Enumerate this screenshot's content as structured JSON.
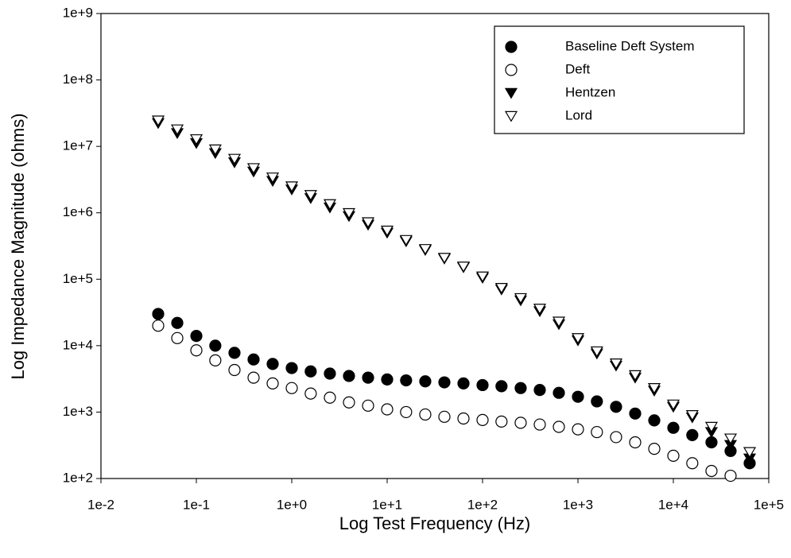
{
  "chart_data": {
    "type": "scatter",
    "x_label": "Log Test Frequency (Hz)",
    "y_label": "Log Impedance Magnitude (ohms)",
    "log_x": true,
    "log_y": true,
    "grid": false,
    "legend_position": "top-right",
    "xlim": [
      0.01,
      100000
    ],
    "ylim": [
      100,
      1000000000
    ],
    "xticks": [
      {
        "value": 0.01,
        "label": "1e-2"
      },
      {
        "value": 0.1,
        "label": "1e-1"
      },
      {
        "value": 1,
        "label": "1e+0"
      },
      {
        "value": 10,
        "label": "1e+1"
      },
      {
        "value": 100,
        "label": "1e+2"
      },
      {
        "value": 1000,
        "label": "1e+3"
      },
      {
        "value": 10000,
        "label": "1e+4"
      },
      {
        "value": 100000,
        "label": "1e+5"
      }
    ],
    "yticks": [
      {
        "value": 100,
        "label": "1e+2"
      },
      {
        "value": 1000,
        "label": "1e+3"
      },
      {
        "value": 10000,
        "label": "1e+4"
      },
      {
        "value": 100000,
        "label": "1e+5"
      },
      {
        "value": 1000000,
        "label": "1e+6"
      },
      {
        "value": 10000000,
        "label": "1e+7"
      },
      {
        "value": 100000000,
        "label": "1e+8"
      },
      {
        "value": 1000000000,
        "label": "1e+9"
      }
    ],
    "x": [
      0.0398,
      0.0631,
      0.1,
      0.158,
      0.251,
      0.398,
      0.631,
      1,
      1.58,
      2.51,
      3.98,
      6.31,
      10,
      15.8,
      25.1,
      39.8,
      63.1,
      100,
      158,
      251,
      398,
      631,
      1000,
      1580,
      2510,
      3980,
      6310,
      10000,
      15800,
      25100,
      39800,
      63100
    ],
    "series": [
      {
        "name": "Baseline Deft System",
        "color": "#000000",
        "marker": "circle",
        "filled": true,
        "values": [
          30000,
          22000,
          14000,
          10000,
          7800,
          6200,
          5300,
          4600,
          4100,
          3800,
          3500,
          3300,
          3100,
          3000,
          2900,
          2800,
          2700,
          2550,
          2450,
          2300,
          2150,
          1950,
          1700,
          1450,
          1200,
          950,
          750,
          580,
          450,
          350,
          260,
          170
        ]
      },
      {
        "name": "Deft",
        "color": "#000000",
        "marker": "circle",
        "filled": false,
        "values": [
          20000,
          13000,
          8500,
          6000,
          4300,
          3300,
          2700,
          2300,
          1900,
          1650,
          1400,
          1250,
          1100,
          1000,
          920,
          850,
          800,
          760,
          720,
          690,
          650,
          600,
          550,
          500,
          420,
          350,
          280,
          220,
          170,
          130,
          110,
          null
        ]
      },
      {
        "name": "Hentzen",
        "color": "#000000",
        "marker": "triangle-down",
        "filled": true,
        "values": [
          22400000,
          15800000,
          11200000,
          7900000,
          5750000,
          4170000,
          3020000,
          2240000,
          1660000,
          1200000,
          891000,
          661000,
          501000,
          372000,
          275000,
          204000,
          151000,
          105000,
          70000,
          48000,
          33000,
          21000,
          12000,
          7600,
          5000,
          3300,
          2100,
          1200,
          830,
          500,
          320,
          200
        ]
      },
      {
        "name": "Lord",
        "color": "#000000",
        "marker": "triangle-down",
        "filled": false,
        "values": [
          24500000,
          18000000,
          12800000,
          9000000,
          6500000,
          4700000,
          3400000,
          2500000,
          1850000,
          1350000,
          990000,
          720000,
          540000,
          390000,
          285000,
          210000,
          155000,
          110000,
          74000,
          52000,
          36000,
          23000,
          13000,
          8200,
          5400,
          3600,
          2300,
          1300,
          900,
          600,
          400,
          250
        ]
      }
    ]
  }
}
